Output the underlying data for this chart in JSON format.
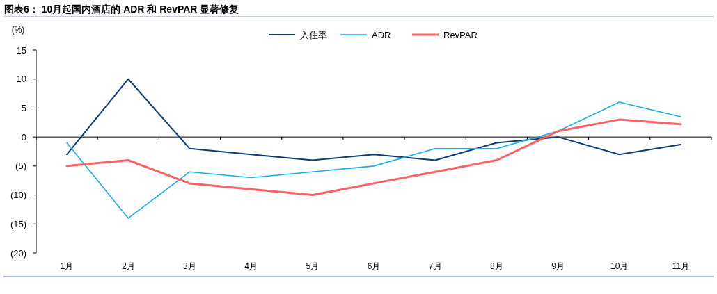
{
  "chart_data": {
    "type": "line",
    "title": "图表6： 10月起国内酒店的 ADR 和 RevPAR 显著修复",
    "ylabel": "(%)",
    "categories": [
      "1月",
      "2月",
      "3月",
      "4月",
      "5月",
      "6月",
      "7月",
      "8月",
      "9月",
      "10月",
      "11月"
    ],
    "series": [
      {
        "name": "入住率",
        "color": "#0c3a7a",
        "values": [
          -3,
          10,
          -2,
          -3,
          -4,
          -3,
          -4,
          -1,
          0,
          -3,
          -1.3
        ]
      },
      {
        "name": "ADR",
        "color": "#18aeea",
        "values": [
          -1,
          -14,
          -6,
          -7,
          -6,
          -5,
          -2,
          -2,
          1,
          6,
          3.5
        ]
      },
      {
        "name": "RevPAR",
        "color": "#fb6262",
        "values": [
          -5,
          -4,
          -8,
          -9,
          -10,
          -8,
          -6,
          -4,
          1,
          3,
          2.2
        ]
      }
    ],
    "ylim": [
      -20,
      15
    ],
    "yticks": [
      15,
      10,
      5,
      0,
      {
        "value": -5,
        "label": "(5)"
      },
      {
        "value": -10,
        "label": "(10)"
      },
      {
        "value": -15,
        "label": "(15)"
      },
      {
        "value": -20,
        "label": "(20)"
      }
    ],
    "legend": "top"
  }
}
